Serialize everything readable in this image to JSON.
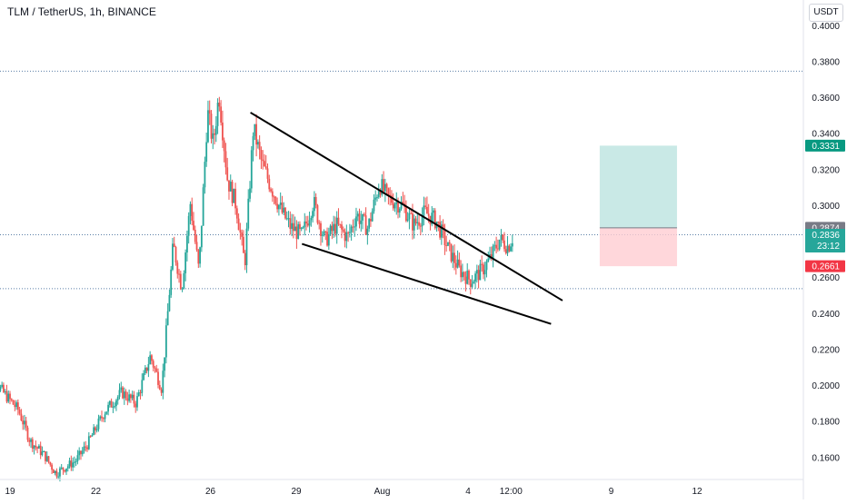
{
  "header": {
    "title": "TLM / TetherUS, 1h, BINANCE"
  },
  "currency_label": "USDT",
  "colors": {
    "up": "#26a69a",
    "down": "#ef5350",
    "target": "#b2dfdb",
    "stop": "#ffcdd2",
    "current": "#26a69a",
    "entry": "#787b86",
    "stop_tag": "#f23645",
    "target_tag": "#089981"
  },
  "chart_data": {
    "type": "candlestick",
    "title": "TLM / TetherUS, 1h, BINANCE",
    "ylim": [
      0.144,
      0.408
    ],
    "y_ticks": [
      "0.4000",
      "0.3800",
      "0.3600",
      "0.3400",
      "0.3200",
      "0.3000",
      "0.2800",
      "0.2600",
      "0.2400",
      "0.2200",
      "0.2000",
      "0.1800",
      "0.1600"
    ],
    "x_ticks": [
      "19",
      "22",
      "26",
      "29",
      "Aug",
      "4",
      "12:00",
      "9",
      "12"
    ],
    "x_tick_days": [
      0,
      3,
      7,
      10,
      13,
      16,
      17.5,
      21,
      24
    ],
    "price_tags": [
      {
        "label": "0.3331",
        "value": 0.3331,
        "kind": "target"
      },
      {
        "label": "0.2874",
        "value": 0.2874,
        "kind": "entry"
      },
      {
        "label": "0.2836",
        "value": 0.2836,
        "kind": "current",
        "sub": "23:12"
      },
      {
        "label": "0.2661",
        "value": 0.2661,
        "kind": "stop"
      }
    ],
    "horizontal_levels": [
      0.3745,
      0.2836,
      0.2536
    ],
    "trendlines": [
      {
        "from": [
          8.4,
          0.3515
        ],
        "to": [
          19.3,
          0.247
        ]
      },
      {
        "from": [
          10.2,
          0.2785
        ],
        "to": [
          18.9,
          0.234
        ]
      }
    ],
    "position": {
      "entry": 0.2874,
      "target": 0.3331,
      "stop": 0.2661,
      "from_day": 20.6,
      "to_day": 23.3
    },
    "series_points": [
      [
        -0.9,
        0.178
      ],
      [
        -0.4,
        0.199
      ],
      [
        0.3,
        0.186
      ],
      [
        0.7,
        0.169
      ],
      [
        1.2,
        0.161
      ],
      [
        1.6,
        0.151
      ],
      [
        2.3,
        0.158
      ],
      [
        2.7,
        0.167
      ],
      [
        3.3,
        0.185
      ],
      [
        3.9,
        0.196
      ],
      [
        4.4,
        0.19
      ],
      [
        4.9,
        0.216
      ],
      [
        5.3,
        0.198
      ],
      [
        5.7,
        0.278
      ],
      [
        6.0,
        0.254
      ],
      [
        6.3,
        0.301
      ],
      [
        6.6,
        0.263
      ],
      [
        6.9,
        0.352
      ],
      [
        7.1,
        0.334
      ],
      [
        7.3,
        0.362
      ],
      [
        7.6,
        0.314
      ],
      [
        7.9,
        0.3
      ],
      [
        8.2,
        0.267
      ],
      [
        8.5,
        0.343
      ],
      [
        8.8,
        0.323
      ],
      [
        9.1,
        0.311
      ],
      [
        9.5,
        0.296
      ],
      [
        9.8,
        0.288
      ],
      [
        10.2,
        0.283
      ],
      [
        10.6,
        0.302
      ],
      [
        11.0,
        0.28
      ],
      [
        11.4,
        0.289
      ],
      [
        11.8,
        0.282
      ],
      [
        12.1,
        0.295
      ],
      [
        12.5,
        0.287
      ],
      [
        12.9,
        0.312
      ],
      [
        13.2,
        0.304
      ],
      [
        13.7,
        0.3
      ],
      [
        14.1,
        0.289
      ],
      [
        14.5,
        0.296
      ],
      [
        14.9,
        0.291
      ],
      [
        15.3,
        0.276
      ],
      [
        15.7,
        0.264
      ],
      [
        16.1,
        0.258
      ],
      [
        16.5,
        0.264
      ],
      [
        16.8,
        0.271
      ],
      [
        17.1,
        0.281
      ],
      [
        17.4,
        0.277
      ],
      [
        17.6,
        0.2836
      ]
    ]
  }
}
